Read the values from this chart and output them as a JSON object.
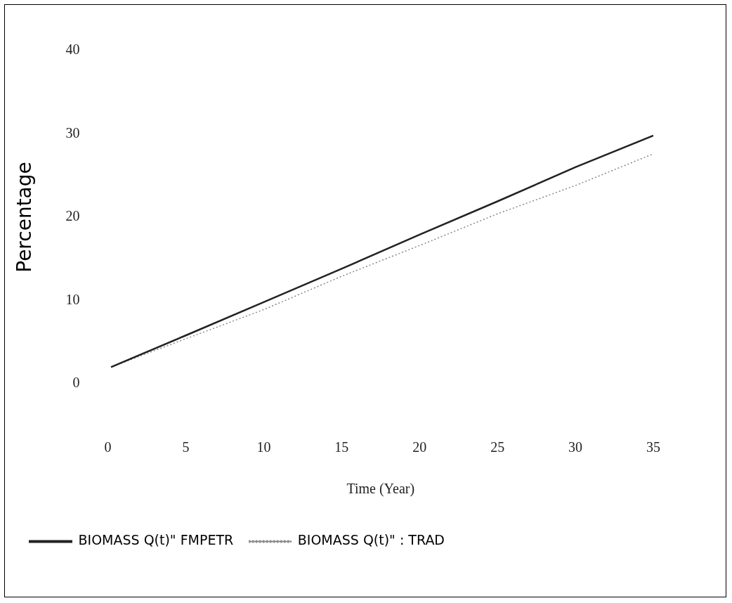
{
  "chart_data": {
    "type": "line",
    "xlabel": "Time (Year)",
    "ylabel": "Percentage",
    "xlim": [
      0,
      35
    ],
    "xticks": [
      0,
      5,
      10,
      15,
      20,
      25,
      30,
      35
    ],
    "ylim": [
      0,
      40
    ],
    "yticks": [
      0,
      10,
      20,
      30,
      40
    ],
    "grid": false,
    "legend": "bottom",
    "marker": "none",
    "series": [
      {
        "name": "BIOMASS Q(t)\" FMPETR",
        "color": "#222222",
        "line_style": "solid",
        "x": [
          0.2,
          5,
          10,
          15,
          20,
          25,
          30,
          35
        ],
        "values": [
          2.0,
          5.8,
          9.8,
          13.8,
          17.9,
          21.9,
          26.0,
          29.8
        ]
      },
      {
        "name": "BIOMASS Q(t)\" : TRAD",
        "color": "#888888",
        "line_style": "dotted",
        "x": [
          0.2,
          5,
          10,
          15,
          20,
          25,
          30,
          35
        ],
        "values": [
          2.0,
          5.4,
          8.9,
          12.9,
          16.6,
          20.4,
          23.8,
          27.6
        ]
      }
    ]
  }
}
